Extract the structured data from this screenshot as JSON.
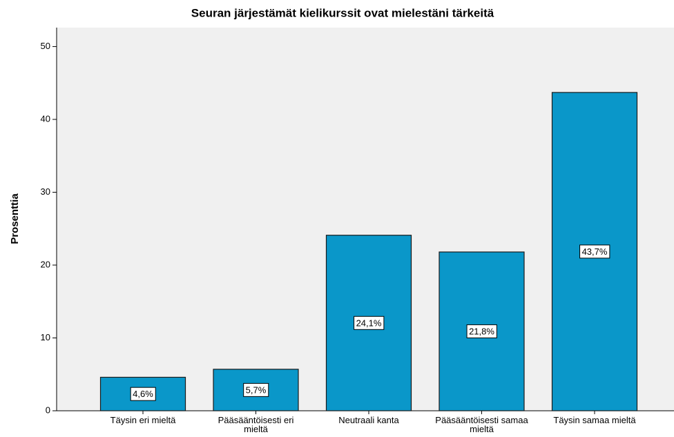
{
  "chart_data": {
    "type": "bar",
    "title": "Seuran järjestämät kielikurssit ovat mielestäni tärkeitä",
    "y_label": "Prosenttia",
    "categories": [
      "Täysin eri mieltä",
      "Pääsääntöisesti eri mieltä",
      "Neutraali kanta",
      "Pääsääntöisesti samaa mieltä",
      "Täysin samaa mieltä"
    ],
    "values": [
      4.6,
      5.7,
      24.1,
      21.8,
      43.7
    ],
    "value_labels": [
      "4,6%",
      "5,7%",
      "24,1%",
      "21,8%",
      "43,7%"
    ],
    "color": "#0a97c9",
    "ylim": [
      0,
      52.6
    ],
    "yticks": [
      0,
      10,
      20,
      30,
      40,
      50
    ],
    "grid": false
  }
}
